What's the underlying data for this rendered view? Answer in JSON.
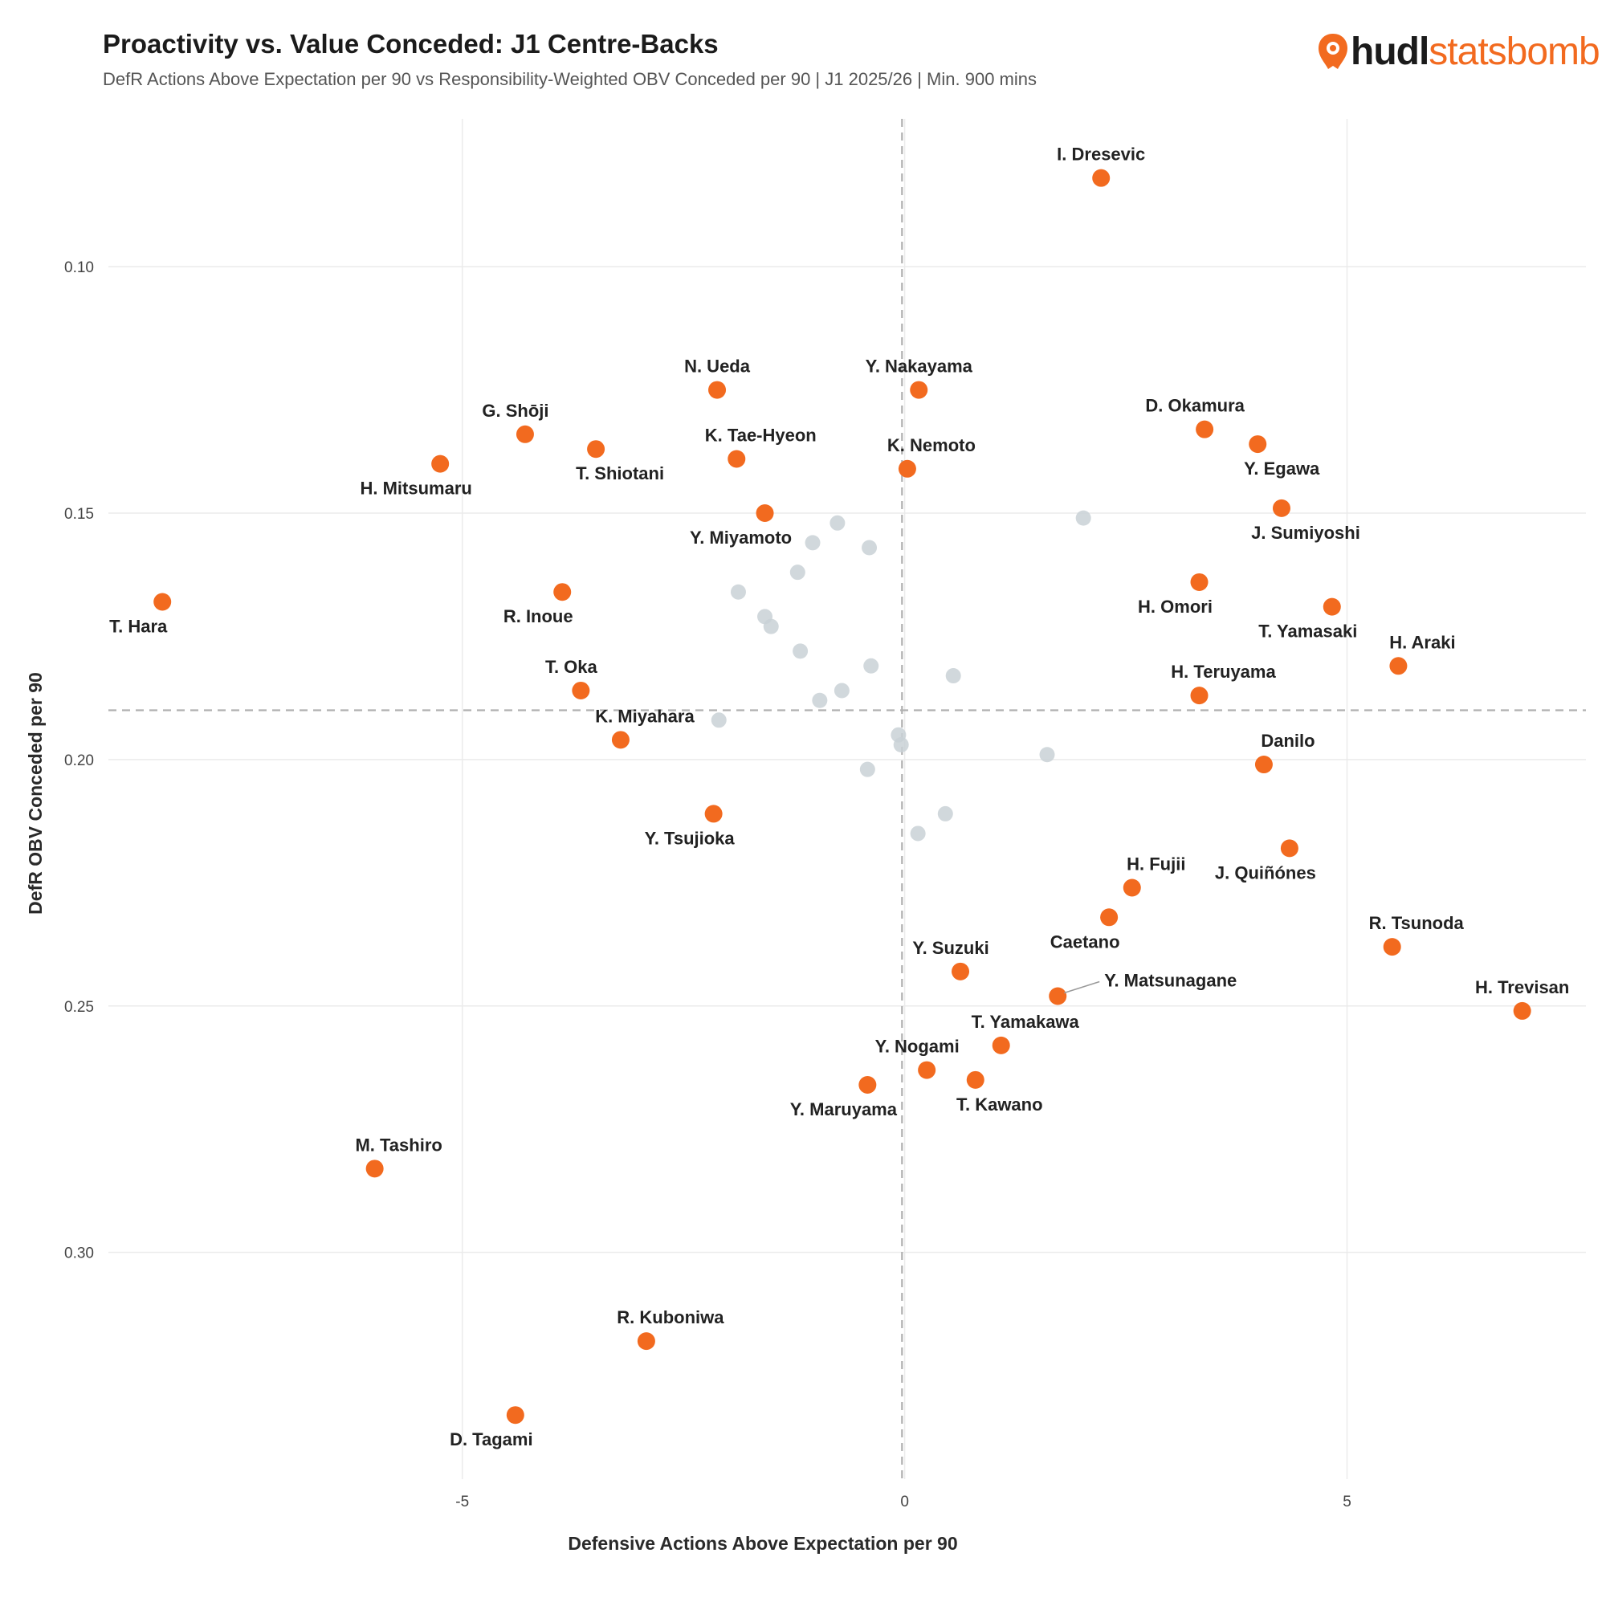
{
  "header": {
    "title": "Proactivity vs. Value Conceded: J1 Centre-Backs",
    "subtitle": "DefR Actions Above Expectation per 90 vs Responsibility-Weighted OBV Conceded per 90 | J1 2025/26 | Min. 900 mins"
  },
  "logo": {
    "part_a": "hudl",
    "part_b": "statsbomb",
    "icon": "hudl-statsbomb-logo-icon"
  },
  "colors": {
    "highlight": "#f26a1f",
    "other": "#c9d1d6",
    "grid": "#ebebeb",
    "ref_line": "#b0b0b0"
  },
  "chart_data": {
    "type": "scatter",
    "title": "Proactivity vs. Value Conceded: J1 Centre-Backs",
    "xlabel": "Defensive Actions Above Expectation per 90",
    "ylabel": "DefR OBV Conceded per 90",
    "xlim": [
      -9.0,
      7.7
    ],
    "ylim": [
      0.07,
      0.346
    ],
    "y_inverted": true,
    "xticks": [
      -5,
      0,
      5
    ],
    "xtick_labels": [
      "-5",
      "0",
      "5"
    ],
    "yticks": [
      0.1,
      0.15,
      0.2,
      0.25,
      0.3
    ],
    "ytick_labels": [
      "0.10",
      "0.15",
      "0.20",
      "0.25",
      "0.30"
    ],
    "grid": true,
    "ref_lines": {
      "x": -0.03,
      "y": 0.19
    },
    "labeled_points": [
      {
        "name": "I. Dresevic",
        "x": 2.22,
        "y": 0.082,
        "pos": "top"
      },
      {
        "name": "Y. Nakayama",
        "x": 0.16,
        "y": 0.125,
        "pos": "top"
      },
      {
        "name": "N. Ueda",
        "x": -2.12,
        "y": 0.125,
        "pos": "top"
      },
      {
        "name": "D. Okamura",
        "x": 3.39,
        "y": 0.133,
        "pos": "top-left"
      },
      {
        "name": "G. Shōji",
        "x": -4.29,
        "y": 0.134,
        "pos": "top-left"
      },
      {
        "name": "Y. Egawa",
        "x": 3.99,
        "y": 0.136,
        "pos": "bottom-right"
      },
      {
        "name": "T. Shiotani",
        "x": -3.49,
        "y": 0.137,
        "pos": "bottom-right"
      },
      {
        "name": "K. Tae-Hyeon",
        "x": -1.9,
        "y": 0.139,
        "pos": "top-right"
      },
      {
        "name": "H. Mitsumaru",
        "x": -5.25,
        "y": 0.14,
        "pos": "bottom-left"
      },
      {
        "name": "K. Nemoto",
        "x": 0.03,
        "y": 0.141,
        "pos": "top-right"
      },
      {
        "name": "J. Sumiyoshi",
        "x": 4.26,
        "y": 0.149,
        "pos": "bottom-right"
      },
      {
        "name": "Y. Miyamoto",
        "x": -1.58,
        "y": 0.15,
        "pos": "bottom-left"
      },
      {
        "name": "H. Omori",
        "x": 3.33,
        "y": 0.164,
        "pos": "bottom-left"
      },
      {
        "name": "R. Inoue",
        "x": -3.87,
        "y": 0.166,
        "pos": "bottom-left"
      },
      {
        "name": "T. Hara",
        "x": -8.39,
        "y": 0.168,
        "pos": "bottom-left"
      },
      {
        "name": "T. Yamasaki",
        "x": 4.83,
        "y": 0.169,
        "pos": "bottom-left"
      },
      {
        "name": "H. Araki",
        "x": 5.58,
        "y": 0.181,
        "pos": "top-right"
      },
      {
        "name": "T. Oka",
        "x": -3.66,
        "y": 0.186,
        "pos": "top-left"
      },
      {
        "name": "H. Teruyama",
        "x": 3.33,
        "y": 0.187,
        "pos": "top-right"
      },
      {
        "name": "K. Miyahara",
        "x": -3.21,
        "y": 0.196,
        "pos": "top-right"
      },
      {
        "name": "Danilo",
        "x": 4.06,
        "y": 0.201,
        "pos": "top-right"
      },
      {
        "name": "Y. Tsujioka",
        "x": -2.16,
        "y": 0.211,
        "pos": "bottom-left"
      },
      {
        "name": "J. Quiñónes",
        "x": 4.35,
        "y": 0.218,
        "pos": "bottom-left"
      },
      {
        "name": "H. Fujii",
        "x": 2.57,
        "y": 0.226,
        "pos": "top-right"
      },
      {
        "name": "Caetano",
        "x": 2.31,
        "y": 0.232,
        "pos": "bottom-left"
      },
      {
        "name": "R. Tsunoda",
        "x": 5.51,
        "y": 0.238,
        "pos": "top-right"
      },
      {
        "name": "Y. Suzuki",
        "x": 0.63,
        "y": 0.243,
        "pos": "top-left"
      },
      {
        "name": "Y. Matsunagane",
        "x": 1.73,
        "y": 0.248,
        "pos": "right-leader"
      },
      {
        "name": "H. Trevisan",
        "x": 6.98,
        "y": 0.251,
        "pos": "top"
      },
      {
        "name": "T. Yamakawa",
        "x": 1.09,
        "y": 0.258,
        "pos": "top-right"
      },
      {
        "name": "Y. Nogami",
        "x": 0.25,
        "y": 0.263,
        "pos": "top-left"
      },
      {
        "name": "T. Kawano",
        "x": 0.8,
        "y": 0.265,
        "pos": "bottom-right"
      },
      {
        "name": "Y. Maruyama",
        "x": -0.42,
        "y": 0.266,
        "pos": "bottom-left"
      },
      {
        "name": "M. Tashiro",
        "x": -5.99,
        "y": 0.283,
        "pos": "top-right"
      },
      {
        "name": "R. Kuboniwa",
        "x": -2.92,
        "y": 0.318,
        "pos": "top-right"
      },
      {
        "name": "D. Tagami",
        "x": -4.4,
        "y": 0.333,
        "pos": "bottom-left"
      }
    ],
    "other_points": [
      {
        "x": 2.02,
        "y": 0.151
      },
      {
        "x": -0.76,
        "y": 0.152
      },
      {
        "x": -1.04,
        "y": 0.156
      },
      {
        "x": -0.4,
        "y": 0.157
      },
      {
        "x": -1.21,
        "y": 0.162
      },
      {
        "x": -1.88,
        "y": 0.166
      },
      {
        "x": -1.58,
        "y": 0.171
      },
      {
        "x": -1.51,
        "y": 0.173
      },
      {
        "x": -1.18,
        "y": 0.178
      },
      {
        "x": -0.38,
        "y": 0.181
      },
      {
        "x": 0.55,
        "y": 0.183
      },
      {
        "x": -0.71,
        "y": 0.186
      },
      {
        "x": -0.96,
        "y": 0.188
      },
      {
        "x": -2.1,
        "y": 0.192
      },
      {
        "x": -0.07,
        "y": 0.195
      },
      {
        "x": -0.04,
        "y": 0.197
      },
      {
        "x": 1.61,
        "y": 0.199
      },
      {
        "x": -0.42,
        "y": 0.202
      },
      {
        "x": 0.46,
        "y": 0.211
      },
      {
        "x": 0.15,
        "y": 0.215
      }
    ]
  }
}
